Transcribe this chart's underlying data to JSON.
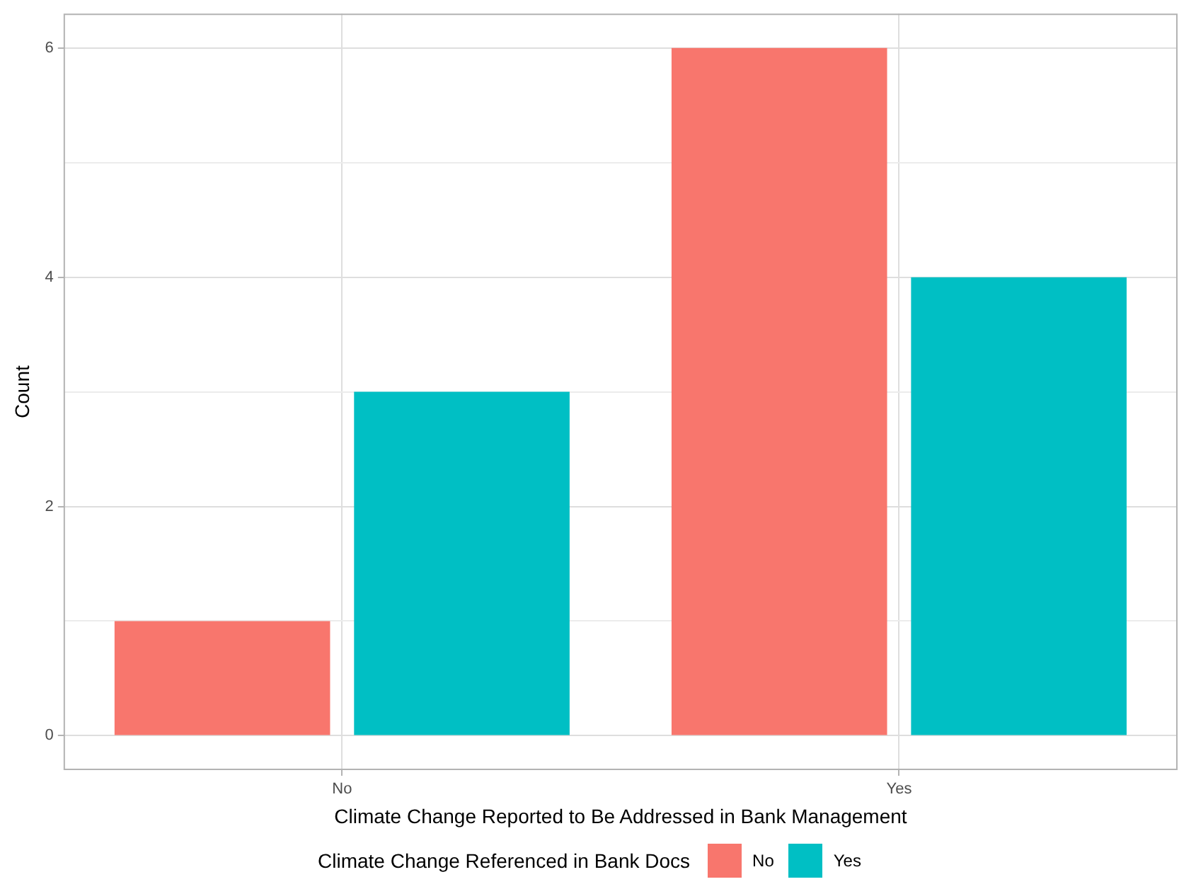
{
  "chart_data": {
    "type": "bar",
    "xlabel": "Climate Change Reported to Be Addressed in Bank Management",
    "ylabel": "Count",
    "legend_title": "Climate Change Referenced in Bank Docs",
    "categories": [
      "No",
      "Yes"
    ],
    "series": [
      {
        "name": "No",
        "color": "#f8766d",
        "values": [
          1,
          6
        ]
      },
      {
        "name": "Yes",
        "color": "#00bfc4",
        "values": [
          3,
          4
        ]
      }
    ],
    "ylim": [
      -0.3,
      6.3
    ],
    "yticks": [
      0,
      {
        "value": 1,
        "label": null
      },
      2,
      {
        "value": 3,
        "label": null
      },
      4,
      {
        "value": 5,
        "label": null
      },
      6
    ],
    "grid": true,
    "legend": "bottom"
  }
}
